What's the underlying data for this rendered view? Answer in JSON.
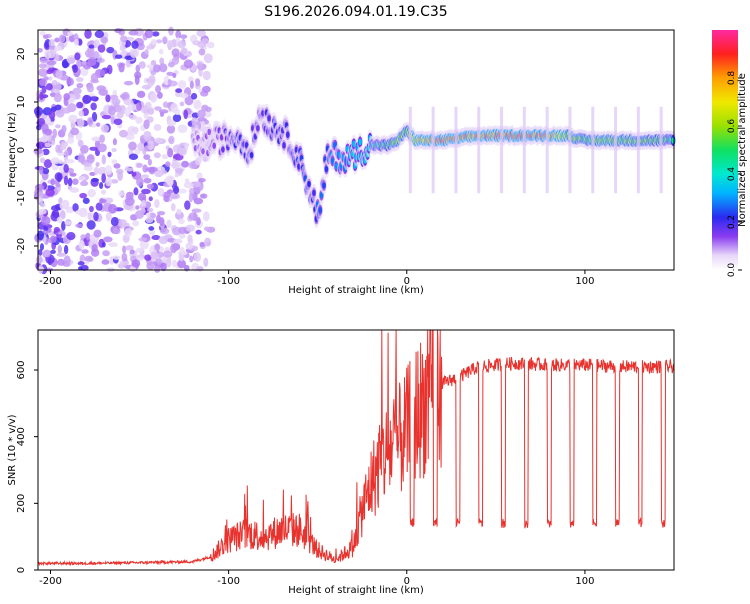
{
  "title": "S196.2026.094.01.19.C35",
  "chart_data": [
    {
      "type": "heatmap",
      "xlabel": "Height of straight line (km)",
      "ylabel": "Frequency (Hz)",
      "xlim": [
        -207,
        150
      ],
      "ylim": [
        -25,
        25
      ],
      "xticks": [
        -200,
        -100,
        0,
        100
      ],
      "yticks": [
        -20,
        -10,
        0,
        10,
        20
      ],
      "colorbar": {
        "label": "Normalized spectral amplitude",
        "range": [
          0,
          1
        ],
        "ticks": [
          0.0,
          0.2,
          0.4,
          0.6,
          0.8
        ],
        "tick_labels": [
          "0.0",
          "0.2",
          "0.4",
          "0.6",
          "0.8"
        ]
      },
      "ridge": {
        "x": [
          -120,
          -105,
          -95,
          -88,
          -82,
          -76,
          -70,
          -64,
          -58,
          -53,
          -49,
          -45,
          -40,
          -35,
          -30,
          -25,
          -20,
          -10,
          -5,
          0,
          5,
          20,
          40,
          60,
          80,
          90,
          100,
          110,
          120,
          135,
          150
        ],
        "y": [
          1,
          2,
          3,
          0,
          8,
          5,
          4,
          1,
          -4,
          -10,
          -14,
          -2,
          -1,
          -2,
          -1,
          0,
          1,
          1,
          2,
          4,
          2,
          2,
          3,
          3,
          3,
          3,
          2,
          2,
          2,
          2,
          2
        ],
        "amp": [
          0.12,
          0.15,
          0.22,
          0.2,
          0.18,
          0.22,
          0.2,
          0.22,
          0.25,
          0.2,
          0.28,
          0.25,
          0.3,
          0.3,
          0.35,
          0.35,
          0.4,
          0.5,
          0.6,
          0.55,
          0.75,
          0.9,
          0.85,
          0.92,
          0.88,
          0.6,
          0.55,
          0.6,
          0.58,
          0.55,
          0.5
        ]
      },
      "noise_region_km": [
        -207,
        -110
      ]
    },
    {
      "type": "line",
      "xlabel": "Height of straight line (km)",
      "ylabel": "SNR (10 * v/v)",
      "xlim": [
        -207,
        150
      ],
      "ylim": [
        0,
        720
      ],
      "xticks": [
        -200,
        -100,
        0,
        100
      ],
      "yticks": [
        0,
        200,
        400,
        600
      ],
      "series": [
        {
          "name": "SNR",
          "color": "#e8322e",
          "x": [
            -207,
            -180,
            -150,
            -120,
            -110,
            -100,
            -90,
            -80,
            -70,
            -60,
            -50,
            -40,
            -30,
            -25,
            -20,
            -15,
            -10,
            -5,
            0,
            5,
            10,
            15,
            20,
            30,
            40,
            50,
            60,
            80,
            100,
            120,
            150
          ],
          "y": [
            20,
            20,
            22,
            25,
            40,
            90,
            110,
            100,
            120,
            120,
            60,
            30,
            70,
            180,
            260,
            320,
            360,
            380,
            420,
            470,
            500,
            540,
            560,
            580,
            610,
            615,
            620,
            615,
            615,
            610,
            610
          ]
        }
      ],
      "dropout_floor": 140,
      "dropout_start_km": 2,
      "dropout_period_km": 12.8
    }
  ]
}
